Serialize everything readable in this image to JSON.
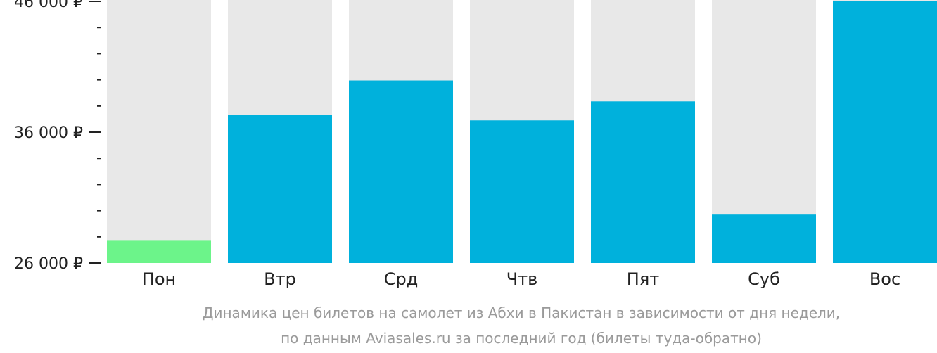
{
  "chart_data": {
    "type": "bar",
    "categories": [
      "Пон",
      "Втр",
      "Срд",
      "Чтв",
      "Пят",
      "Суб",
      "Вос"
    ],
    "values": [
      27700,
      37300,
      39950,
      36900,
      38350,
      29700,
      46000
    ],
    "ylim": [
      26000,
      46000
    ],
    "yticks": [
      {
        "value": 26000,
        "label": "26 000 ₽"
      },
      {
        "value": 36000,
        "label": "36 000 ₽"
      },
      {
        "value": 46000,
        "label": "46 000 ₽"
      }
    ],
    "minor_tick_step": 2000,
    "highlight_index": 0,
    "colors": {
      "bar": "#00b1dc",
      "highlight": "#6cf48a",
      "background_column": "#e8e8e8",
      "axis": "#222222",
      "caption": "#9a9a9a"
    },
    "caption": [
      "Динамика цен билетов на самолет из Абхи в Пакистан в зависимости от дня недели,",
      "по данным Aviasales.ru за последний год (билеты туда-обратно)"
    ],
    "grid": false,
    "legend": "none"
  }
}
